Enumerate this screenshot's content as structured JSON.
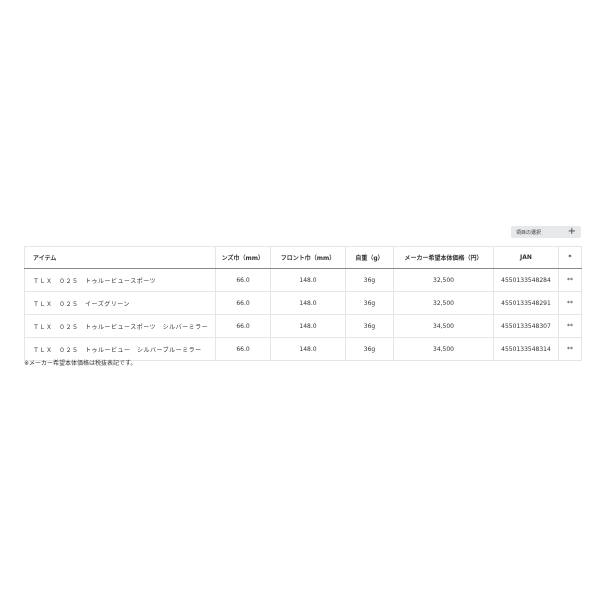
{
  "select_button": {
    "label": "項目の選択",
    "icon": "plus-icon"
  },
  "table": {
    "headers": [
      "アイテム",
      "ンズ巾（mm）",
      "フロント巾（mm）",
      "自重（g）",
      "メーカー希望本体価格（円）",
      "JAN",
      "*"
    ],
    "rows": [
      [
        "ＴＬＸ　０２５　トゥルービュースポーツ",
        "66.0",
        "148.0",
        "36g",
        "32,500",
        "4550133548284",
        "**"
      ],
      [
        "ＴＬＸ　０２５　イーズグリーン",
        "66.0",
        "148.0",
        "36g",
        "32,500",
        "4550133548291",
        "**"
      ],
      [
        "ＴＬＸ　０２５　トゥルービュースポーツ　シルバーミラー",
        "66.0",
        "148.0",
        "36g",
        "34,500",
        "4550133548307",
        "**"
      ],
      [
        "ＴＬＸ　０２５　トゥルービュー　シルバーブルーミラー",
        "66.0",
        "148.0",
        "36g",
        "34,500",
        "4550133548314",
        "**"
      ]
    ]
  },
  "note": "※メーカー希望本体価格は税抜表記です。"
}
